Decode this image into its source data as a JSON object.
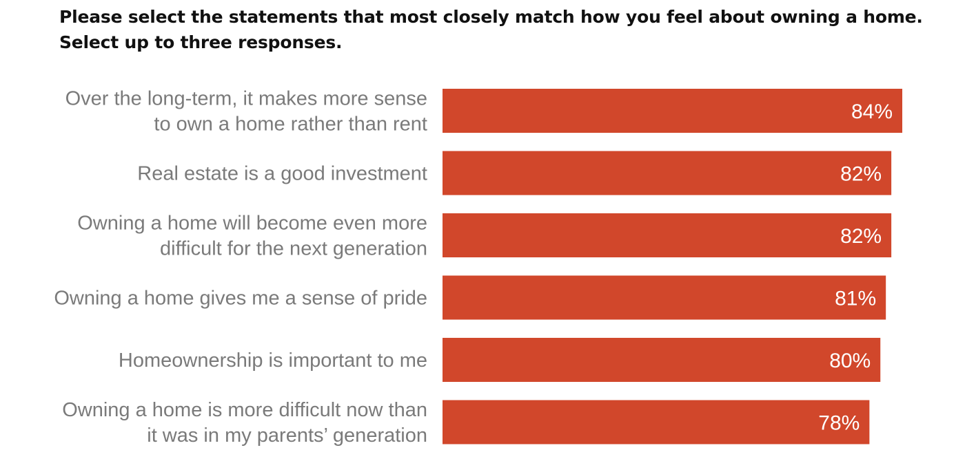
{
  "chart_data": {
    "type": "bar",
    "orientation": "horizontal",
    "title": "Please select the statements that most closely match how you feel about owning a home.",
    "subtitle": "Select up to three responses.",
    "categories": [
      [
        "Over the long-term, it makes more sense",
        "to own a home rather than rent"
      ],
      [
        "Real estate is a good investment"
      ],
      [
        "Owning a home will become even more",
        "difficult for the next generation"
      ],
      [
        "Owning a home gives me a sense of pride"
      ],
      [
        "Homeownership is important to me"
      ],
      [
        "Owning a home is more difficult now than",
        "it was in my parents’ generation"
      ]
    ],
    "values": [
      84,
      82,
      82,
      81,
      80,
      78
    ],
    "value_labels": [
      "84%",
      "82%",
      "82%",
      "81%",
      "80%",
      "78%"
    ],
    "unit": "%",
    "xlim": [
      0,
      84
    ],
    "grid": false,
    "legend": "none",
    "bar_color": "#d1472b"
  }
}
